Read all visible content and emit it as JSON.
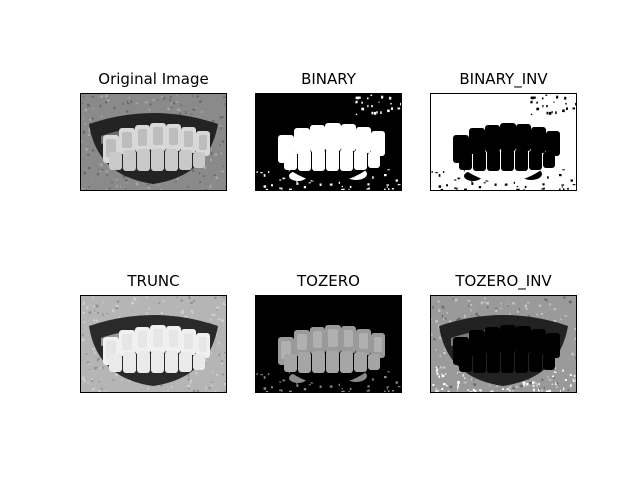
{
  "figure": {
    "panels": [
      {
        "title": "Original Image",
        "mode": "original"
      },
      {
        "title": "BINARY",
        "mode": "binary"
      },
      {
        "title": "BINARY_INV",
        "mode": "binary_inv"
      },
      {
        "title": "TRUNC",
        "mode": "trunc"
      },
      {
        "title": "TOZERO",
        "mode": "tozero"
      },
      {
        "title": "TOZERO_INV",
        "mode": "tozero_inv"
      }
    ]
  }
}
